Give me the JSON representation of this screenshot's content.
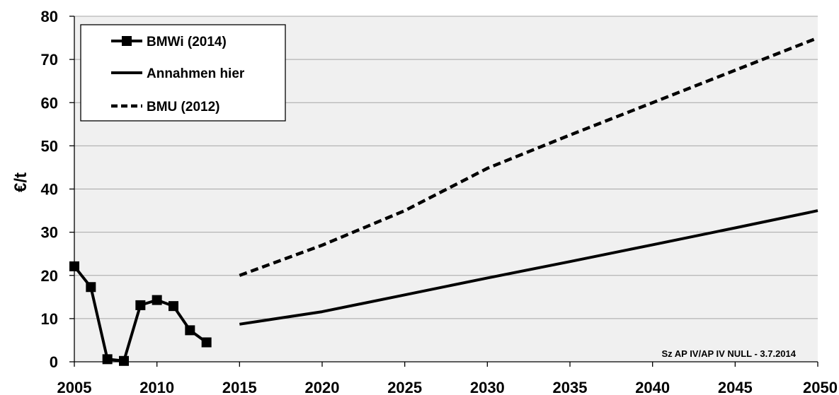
{
  "chart_data": {
    "type": "line",
    "title": "",
    "xlabel": "",
    "ylabel": "€/t",
    "xlim": [
      2005,
      2050
    ],
    "ylim": [
      0,
      80
    ],
    "xticks": [
      2005,
      2010,
      2015,
      2020,
      2025,
      2030,
      2035,
      2040,
      2045,
      2050
    ],
    "yticks": [
      0,
      10,
      20,
      30,
      40,
      50,
      60,
      70,
      80
    ],
    "grid": "horizontal",
    "plot_background": "#f0f0f0",
    "legend_position": "top-left",
    "series": [
      {
        "name": "BMWi (2014)",
        "style": "solid-with-square-markers",
        "color": "#000000",
        "points": [
          [
            2005,
            22.1
          ],
          [
            2006,
            17.3
          ],
          [
            2007,
            0.6
          ],
          [
            2008,
            0.2
          ],
          [
            2009,
            13.1
          ],
          [
            2010,
            14.3
          ],
          [
            2011,
            12.9
          ],
          [
            2012,
            7.3
          ],
          [
            2013,
            4.5
          ]
        ]
      },
      {
        "name": "Annahmen hier",
        "style": "solid",
        "color": "#000000",
        "points": [
          [
            2015,
            8.7
          ],
          [
            2020,
            11.6
          ],
          [
            2025,
            15.5
          ],
          [
            2030,
            19.4
          ],
          [
            2035,
            23.2
          ],
          [
            2040,
            27.1
          ],
          [
            2045,
            31.0
          ],
          [
            2050,
            35.0
          ]
        ]
      },
      {
        "name": "BMU (2012)",
        "style": "dashed",
        "color": "#000000",
        "points": [
          [
            2015,
            20.0
          ],
          [
            2020,
            27.0
          ],
          [
            2025,
            35.0
          ],
          [
            2030,
            44.8
          ],
          [
            2035,
            52.5
          ],
          [
            2040,
            60.0
          ],
          [
            2045,
            67.5
          ],
          [
            2050,
            75.0
          ]
        ]
      }
    ],
    "annotation": "Sz AP IV/AP IV NULL - 3.7.2014"
  }
}
